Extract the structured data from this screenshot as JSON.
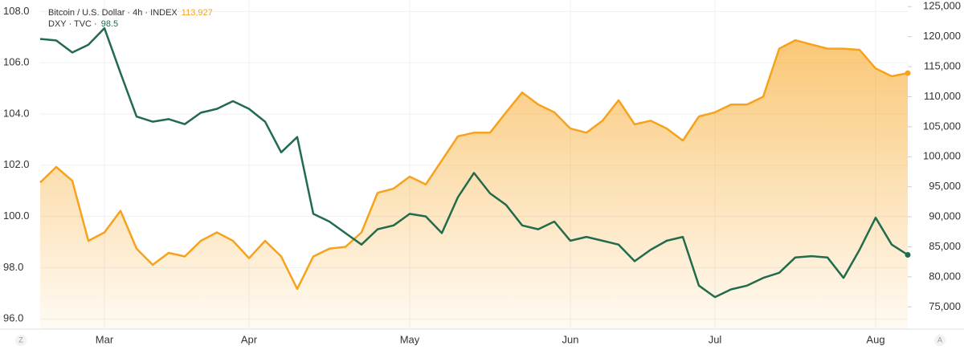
{
  "chart_data": {
    "type": "line",
    "categories": [
      null,
      null,
      null,
      null,
      "Mar",
      null,
      null,
      null,
      null,
      null,
      null,
      null,
      null,
      "Apr",
      null,
      null,
      null,
      null,
      null,
      null,
      null,
      null,
      null,
      "May",
      null,
      null,
      null,
      null,
      null,
      null,
      null,
      null,
      null,
      "Jun",
      null,
      null,
      null,
      null,
      null,
      null,
      null,
      null,
      "Jul",
      null,
      null,
      null,
      null,
      null,
      null,
      null,
      null,
      null,
      "Aug",
      null,
      null
    ],
    "series": [
      {
        "name": "Bitcoin / U.S. Dollar · 4h · INDEX",
        "color": "#f7a21b",
        "axis": "y2",
        "values": [
          95700,
          98300,
          96000,
          86000,
          87400,
          91000,
          84700,
          82000,
          84000,
          83400,
          86000,
          87400,
          86000,
          83100,
          86000,
          83400,
          78000,
          83400,
          84700,
          85000,
          87400,
          94000,
          94700,
          96700,
          95400,
          99400,
          103400,
          104000,
          104000,
          107400,
          110700,
          108700,
          107400,
          104700,
          104000,
          106000,
          109400,
          105400,
          106000,
          104700,
          102700,
          106700,
          107400,
          108700,
          108700,
          110000,
          118000,
          119400,
          118700,
          118000,
          118000,
          117800,
          114700,
          113400,
          113927
        ],
        "value_labels": [
          null,
          null,
          null,
          null,
          null,
          null,
          null,
          null,
          null,
          null,
          null,
          null,
          null,
          null,
          null,
          null,
          null,
          null,
          null,
          null,
          null,
          null,
          null,
          null,
          null,
          null,
          null,
          null,
          null,
          null,
          null,
          null,
          null,
          null,
          null,
          null,
          null,
          null,
          null,
          null,
          null,
          null,
          null,
          null,
          null,
          null,
          null,
          null,
          null,
          null,
          null,
          null,
          null,
          null,
          "113,927"
        ]
      },
      {
        "name": "DXY · TVC ·",
        "color": "#226b4c",
        "values": [
          106.93,
          106.87,
          106.4,
          106.7,
          107.35,
          105.6,
          103.9,
          103.7,
          103.8,
          103.6,
          104.05,
          104.2,
          104.5,
          104.2,
          103.7,
          102.5,
          103.1,
          100.1,
          99.8,
          99.35,
          98.9,
          99.5,
          99.65,
          100.1,
          100,
          99.35,
          100.75,
          101.7,
          100.9,
          100.45,
          99.65,
          99.5,
          99.8,
          99.05,
          99.2,
          99.05,
          98.9,
          98.25,
          98.7,
          99.05,
          99.2,
          97.3,
          96.85,
          97.15,
          97.3,
          97.6,
          97.8,
          98.4,
          98.45,
          98.4,
          97.6,
          98.7,
          99.95,
          98.9,
          98.5
        ],
        "value_labels": [
          null,
          null,
          null,
          null,
          null,
          null,
          null,
          null,
          null,
          null,
          null,
          null,
          null,
          null,
          null,
          null,
          null,
          null,
          null,
          null,
          null,
          null,
          null,
          null,
          null,
          null,
          null,
          null,
          null,
          null,
          null,
          null,
          null,
          null,
          null,
          null,
          null,
          null,
          null,
          null,
          null,
          null,
          null,
          null,
          null,
          null,
          null,
          null,
          null,
          null,
          null,
          null,
          null,
          null,
          "98.5"
        ]
      }
    ],
    "ylim": [
      95.6,
      108.45
    ],
    "yticks": [
      {
        "value": 96,
        "label": "96.0"
      },
      {
        "value": 98,
        "label": "98.0"
      },
      {
        "value": 100,
        "label": "100.0"
      },
      {
        "value": 102,
        "label": "102.0"
      },
      {
        "value": 104,
        "label": "104.0"
      },
      {
        "value": 106,
        "label": "106.0"
      },
      {
        "value": 108,
        "label": "108.0"
      }
    ],
    "y2lim": [
      71300,
      126100
    ],
    "y2ticks": [
      {
        "value": 75000,
        "label": "75,000"
      },
      {
        "value": 80000,
        "label": "80,000"
      },
      {
        "value": 85000,
        "label": "85,000"
      },
      {
        "value": 90000,
        "label": "90,000"
      },
      {
        "value": 95000,
        "label": "95,000"
      },
      {
        "value": 100000,
        "label": "100,000"
      },
      {
        "value": 105000,
        "label": "105,000"
      },
      {
        "value": 110000,
        "label": "110,000"
      },
      {
        "value": 115000,
        "label": "115,000"
      },
      {
        "value": 120000,
        "label": "120,000"
      },
      {
        "value": 125000,
        "label": "125,000"
      }
    ],
    "grid": true,
    "corner_buttons": [
      "Z",
      "A"
    ]
  }
}
